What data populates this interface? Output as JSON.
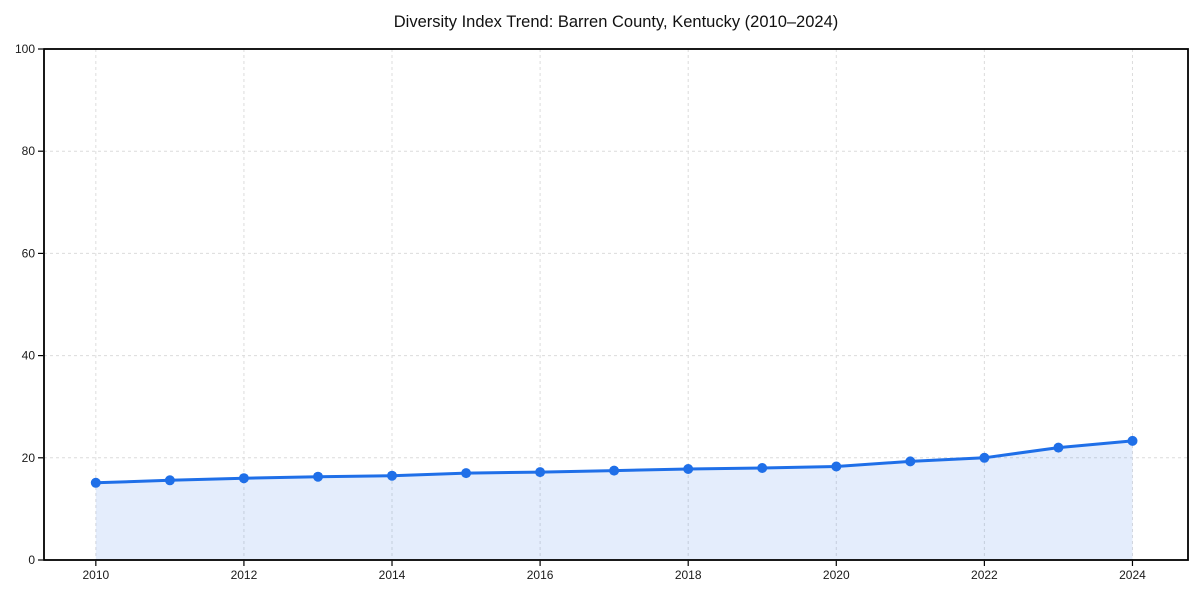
{
  "page": {
    "background": "#ffffff"
  },
  "chart_data": {
    "type": "line",
    "title": "Diversity Index Trend: Barren County, Kentucky (2010–2024)",
    "series": [
      {
        "name": "Diversity Index",
        "x": [
          2010,
          2011,
          2012,
          2013,
          2014,
          2015,
          2016,
          2017,
          2018,
          2019,
          2020,
          2021,
          2022,
          2023,
          2024
        ],
        "values": [
          15.1,
          15.6,
          16.0,
          16.3,
          16.5,
          17.0,
          17.2,
          17.5,
          17.8,
          18.0,
          18.3,
          19.3,
          20.0,
          22.0,
          23.3
        ]
      }
    ],
    "xlabel": "",
    "ylabel": "",
    "xlim": [
      2009.3,
      2024.75
    ],
    "ylim": [
      0,
      100
    ],
    "xticks": [
      2010,
      2012,
      2014,
      2016,
      2018,
      2020,
      2022,
      2024
    ],
    "yticks": [
      0,
      20,
      40,
      60,
      80,
      100
    ],
    "grid": true,
    "grid_style": "dashed",
    "legend": false,
    "area": true,
    "colors": {
      "line": "#1f6fe8",
      "marker": "#1f6fe8",
      "fill": "#1f6fe8",
      "fill_opacity": 0.12,
      "gridline": "#dcdcdc",
      "spine": "#000000",
      "tick_label": "#1a1a1a",
      "title": "#111111"
    }
  }
}
